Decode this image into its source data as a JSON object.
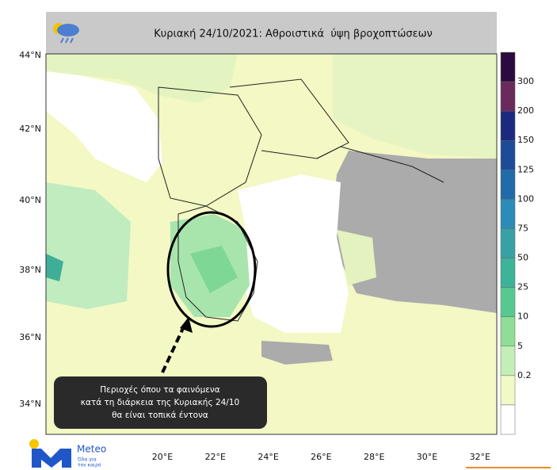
{
  "header": {
    "title": "Κυριακή 24/10/2021: Αθροιστικά  ύψη βροχοπτώσεων"
  },
  "map": {
    "lat_labels": [
      "44°N",
      "42°N",
      "40°N",
      "38°N",
      "36°N",
      "34°N"
    ],
    "lon_labels": [
      "20°E",
      "22°E",
      "24°E",
      "26°E",
      "28°E",
      "30°E",
      "32°E"
    ]
  },
  "legend": {
    "labels": [
      "300",
      "200",
      "150",
      "125",
      "100",
      "75",
      "50",
      "25",
      "10",
      "5",
      "0.2"
    ],
    "colors": [
      "#2b0b3f",
      "#6a2a5c",
      "#1b2a7e",
      "#1c4b98",
      "#1f6ca8",
      "#2c8cb8",
      "#37a1a6",
      "#3db39a",
      "#58c98e",
      "#8fdd96",
      "#c3efb6",
      "#f1f9c6",
      "#ffffff"
    ]
  },
  "annotation": {
    "lines": [
      "Περιοχές όπου τα φαινόμενα",
      "κατά τη διάρκεια της Κυριακής 24/10",
      "θα είναι τοπικά έντονα"
    ]
  },
  "logo": {
    "name": "Meteo",
    "tagline": [
      "Όλα για",
      "τον καιρό"
    ]
  }
}
